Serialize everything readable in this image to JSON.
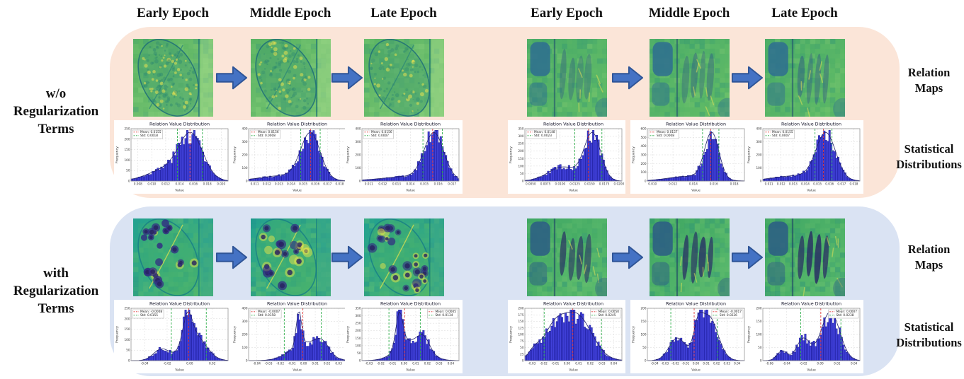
{
  "figure": {
    "background": "#ffffff"
  },
  "colors": {
    "panel_without": "#fbe5d8",
    "panel_with": "#dae3f3",
    "arrow_fill": "#4472c4",
    "arrow_stroke": "#2f5597",
    "hist_bar": "#3636d6",
    "hist_bar_edge": "#16168e",
    "mean_line": "#e23b3b",
    "std_line": "#2fae4a"
  },
  "column_headers": [
    "Early Epoch",
    "Middle Epoch",
    "Late Epoch"
  ],
  "row_groups": [
    {
      "label": "w/o\nRegularization\nTerms"
    },
    {
      "label": "with\nRegularization\nTerms"
    }
  ],
  "right_labels": {
    "relation_maps": "Relation\nMaps",
    "statistical_distributions": "Statistical\nDistributions"
  },
  "relation_maps": [
    {
      "panel": "w/o Regularization Terms",
      "sample": 1,
      "epoch": "Early Epoch",
      "style": "leaf-light",
      "appearance": "green leaf-section map, fine bright speckles, vertical seam near right edge"
    },
    {
      "panel": "w/o Regularization Terms",
      "sample": 1,
      "epoch": "Middle Epoch",
      "style": "leaf-light",
      "appearance": "green leaf-section map, slightly smoother speckle texture"
    },
    {
      "panel": "w/o Regularization Terms",
      "sample": 1,
      "epoch": "Late Epoch",
      "style": "leaf-light",
      "appearance": "green leaf-section map, smooth low-contrast texture"
    },
    {
      "panel": "w/o Regularization Terms",
      "sample": 2,
      "epoch": "Early Epoch",
      "style": "bands-light",
      "appearance": "green tissue map with faint dark vertical pores and dark capsule at top-left"
    },
    {
      "panel": "w/o Regularization Terms",
      "sample": 2,
      "epoch": "Middle Epoch",
      "style": "bands-light",
      "appearance": "green tissue map, pores slightly more defined"
    },
    {
      "panel": "w/o Regularization Terms",
      "sample": 2,
      "epoch": "Late Epoch",
      "style": "bands-light",
      "appearance": "green tissue map, pores clearer with mottled texture"
    },
    {
      "panel": "with Regularization Terms",
      "sample": 1,
      "epoch": "Early Epoch",
      "style": "leaf-dark",
      "appearance": "teal-green leaf map with many dark navy round blobs and yellow veins"
    },
    {
      "panel": "with Regularization Terms",
      "sample": 1,
      "epoch": "Middle Epoch",
      "style": "leaf-dark",
      "appearance": "teal-green leaf map, dark blobs larger and higher contrast"
    },
    {
      "panel": "with Regularization Terms",
      "sample": 1,
      "epoch": "Late Epoch",
      "style": "leaf-dark",
      "appearance": "teal-green leaf map, dark blobs sharpest"
    },
    {
      "panel": "with Regularization Terms",
      "sample": 2,
      "epoch": "Early Epoch",
      "style": "bands-dark",
      "appearance": "green tissue map with deep navy elongated pore blobs and dark left capsule"
    },
    {
      "panel": "with Regularization Terms",
      "sample": 2,
      "epoch": "Middle Epoch",
      "style": "bands-dark",
      "appearance": "green tissue map, navy pores larger and darker"
    },
    {
      "panel": "with Regularization Terms",
      "sample": 2,
      "epoch": "Late Epoch",
      "style": "bands-dark",
      "appearance": "green tissue map, navy pores darkest and most defined"
    }
  ],
  "chart_data": [
    {
      "id": "without-1-early",
      "type": "histogram",
      "panel": "w/o Regularization Terms",
      "sample": 1,
      "epoch": "Early Epoch",
      "title": "Relation Value Distribution",
      "xlabel": "Value",
      "ylabel": "Frequency",
      "legend": [
        "Mean: 0.0155",
        "Std: 0.0018"
      ],
      "mean": 0.0155,
      "std": 0.0018,
      "legend_pos": "left",
      "x_range": [
        0.007,
        0.021
      ],
      "xticks": [
        "0.008",
        "0.010",
        "0.012",
        "0.014",
        "0.016",
        "0.018",
        "0.020"
      ],
      "yticks": [
        0,
        50,
        100,
        150,
        200,
        250
      ],
      "peaks": [
        {
          "c": 0.0157,
          "s": 0.0017,
          "w": 1
        },
        {
          "c": 0.0125,
          "s": 0.0028,
          "w": 0.3
        }
      ]
    },
    {
      "id": "without-1-middle",
      "type": "histogram",
      "panel": "w/o Regularization Terms",
      "sample": 1,
      "epoch": "Middle Epoch",
      "title": "Relation Value Distribution",
      "xlabel": "Value",
      "ylabel": "Frequency",
      "legend": [
        "Mean: 0.0156",
        "Std: 0.0008"
      ],
      "mean": 0.0156,
      "std": 0.0008,
      "legend_pos": "left",
      "x_range": [
        0.0105,
        0.0185
      ],
      "xticks": [
        "0.011",
        "0.012",
        "0.013",
        "0.014",
        "0.015",
        "0.016",
        "0.017",
        "0.018"
      ],
      "yticks": [
        0,
        100,
        200,
        300,
        400
      ],
      "peaks": [
        {
          "c": 0.0156,
          "s": 0.0008,
          "w": 1
        },
        {
          "c": 0.0135,
          "s": 0.002,
          "w": 0.12
        }
      ]
    },
    {
      "id": "without-1-late",
      "type": "histogram",
      "panel": "w/o Regularization Terms",
      "sample": 1,
      "epoch": "Late Epoch",
      "title": "Relation Value Distribution",
      "xlabel": "Value",
      "ylabel": "Frequency",
      "legend": [
        "Mean: 0.0156",
        "Std: 0.0007"
      ],
      "mean": 0.0156,
      "std": 0.0007,
      "legend_pos": "left",
      "x_range": [
        0.0105,
        0.0175
      ],
      "xticks": [
        "0.011",
        "0.012",
        "0.013",
        "0.014",
        "0.015",
        "0.016",
        "0.017"
      ],
      "yticks": [
        0,
        100,
        200,
        300,
        400
      ],
      "peaks": [
        {
          "c": 0.0157,
          "s": 0.0007,
          "w": 1
        },
        {
          "c": 0.014,
          "s": 0.002,
          "w": 0.1
        }
      ]
    },
    {
      "id": "without-2-early",
      "type": "histogram",
      "panel": "w/o Regularization Terms",
      "sample": 2,
      "epoch": "Early Epoch",
      "title": "Relation Value Distribution",
      "xlabel": "Value",
      "ylabel": "Frequency",
      "legend": [
        "Mean: 0.0148",
        "Std: 0.0023"
      ],
      "mean": 0.0148,
      "std": 0.0023,
      "legend_pos": "left",
      "x_range": [
        0.004,
        0.0205
      ],
      "xticks": [
        "0.0050",
        "0.0075",
        "0.0100",
        "0.0125",
        "0.0150",
        "0.0175",
        "0.0200"
      ],
      "yticks": [
        0,
        50,
        100,
        150,
        200,
        250,
        300,
        350
      ],
      "peaks": [
        {
          "c": 0.0155,
          "s": 0.0014,
          "w": 1
        },
        {
          "c": 0.0105,
          "s": 0.0025,
          "w": 0.3
        }
      ]
    },
    {
      "id": "without-2-middle",
      "type": "histogram",
      "panel": "w/o Regularization Terms",
      "sample": 2,
      "epoch": "Middle Epoch",
      "title": "Relation Value Distribution",
      "xlabel": "Value",
      "ylabel": "Frequency",
      "legend": [
        "Mean: 0.0157",
        "Std: 0.0008"
      ],
      "mean": 0.0157,
      "std": 0.0008,
      "legend_pos": "left",
      "x_range": [
        0.0095,
        0.019
      ],
      "xticks": [
        "0.010",
        "0.012",
        "0.014",
        "0.016",
        "0.018"
      ],
      "yticks": [
        0,
        100,
        200,
        300,
        400,
        500,
        600
      ],
      "peaks": [
        {
          "c": 0.0158,
          "s": 0.0007,
          "w": 1
        },
        {
          "c": 0.0135,
          "s": 0.002,
          "w": 0.1
        }
      ]
    },
    {
      "id": "without-2-late",
      "type": "histogram",
      "panel": "w/o Regularization Terms",
      "sample": 2,
      "epoch": "Late Epoch",
      "title": "Relation Value Distribution",
      "xlabel": "Value",
      "ylabel": "Frequency",
      "legend": [
        "Mean: 0.0155",
        "Std: 0.0007"
      ],
      "mean": 0.0155,
      "std": 0.0007,
      "legend_pos": "left",
      "x_range": [
        0.0105,
        0.0185
      ],
      "xticks": [
        "0.011",
        "0.012",
        "0.013",
        "0.014",
        "0.015",
        "0.016",
        "0.017",
        "0.018"
      ],
      "yticks": [
        0,
        100,
        200,
        300,
        400
      ],
      "peaks": [
        {
          "c": 0.0157,
          "s": 0.0008,
          "w": 1
        },
        {
          "c": 0.0135,
          "s": 0.002,
          "w": 0.12
        }
      ]
    },
    {
      "id": "with-1-early",
      "type": "histogram",
      "panel": "with Regularization Terms",
      "sample": 1,
      "epoch": "Early Epoch",
      "title": "Relation Value Distribution",
      "xlabel": "Value",
      "ylabel": "Frequency",
      "legend": [
        "Mean: -0.0008",
        "Std: 0.0155"
      ],
      "mean": -0.0008,
      "std": 0.0155,
      "legend_pos": "left",
      "x_range": [
        -0.052,
        0.034
      ],
      "xticks": [
        "-0.04",
        "-0.02",
        "0.00",
        "0.02"
      ],
      "yticks": [
        0,
        50,
        100,
        150,
        200,
        250
      ],
      "peaks": [
        {
          "c": -0.002,
          "s": 0.004,
          "w": 0.9
        },
        {
          "c": 0.004,
          "s": 0.01,
          "w": 0.85
        },
        {
          "c": -0.025,
          "s": 0.007,
          "w": 0.38
        }
      ]
    },
    {
      "id": "with-1-middle",
      "type": "histogram",
      "panel": "with Regularization Terms",
      "sample": 1,
      "epoch": "Middle Epoch",
      "title": "Relation Value Distribution",
      "xlabel": "Value",
      "ylabel": "Frequency",
      "legend": [
        "Mean: -0.0007",
        "Std: 0.0158"
      ],
      "mean": -0.0007,
      "std": 0.0158,
      "legend_pos": "left",
      "x_range": [
        -0.047,
        0.036
      ],
      "xticks": [
        "-0.04",
        "-0.03",
        "-0.02",
        "-0.01",
        "0.00",
        "0.01",
        "0.02",
        "0.03"
      ],
      "yticks": [
        0,
        100,
        200,
        300,
        400
      ],
      "peaks": [
        {
          "c": -0.004,
          "s": 0.0022,
          "w": 1
        },
        {
          "c": 0.002,
          "s": 0.013,
          "w": 0.5
        },
        {
          "c": 0.016,
          "s": 0.006,
          "w": 0.33
        }
      ]
    },
    {
      "id": "with-1-late",
      "type": "histogram",
      "panel": "with Regularization Terms",
      "sample": 1,
      "epoch": "Late Epoch",
      "title": "Relation Value Distribution",
      "xlabel": "Value",
      "ylabel": "Frequency",
      "legend": [
        "Mean: 0.0005",
        "Std: 0.0134"
      ],
      "mean": 0.0005,
      "std": 0.0134,
      "legend_pos": "right",
      "x_range": [
        -0.036,
        0.047
      ],
      "xticks": [
        "-0.03",
        "-0.02",
        "-0.01",
        "0.00",
        "0.01",
        "0.02",
        "0.03",
        "0.04"
      ],
      "yticks": [
        0,
        50,
        100,
        150,
        200,
        250,
        300,
        350
      ],
      "peaks": [
        {
          "c": -0.004,
          "s": 0.003,
          "w": 1
        },
        {
          "c": 0.006,
          "s": 0.012,
          "w": 0.55
        },
        {
          "c": 0.017,
          "s": 0.005,
          "w": 0.35
        }
      ]
    },
    {
      "id": "with-2-early",
      "type": "histogram",
      "panel": "with Regularization Terms",
      "sample": 2,
      "epoch": "Early Epoch",
      "title": "Relation Value Distribution",
      "xlabel": "Value",
      "ylabel": "Frequency",
      "legend": [
        "Mean: 0.0050",
        "Std: 0.0245"
      ],
      "mean": 0.005,
      "std": 0.0245,
      "legend_pos": "right",
      "x_range": [
        -0.036,
        0.047
      ],
      "xticks": [
        "-0.03",
        "-0.02",
        "-0.01",
        "0.00",
        "0.01",
        "0.02",
        "0.03",
        "0.04"
      ],
      "yticks": [
        0,
        25,
        50,
        75,
        100,
        125,
        150,
        175,
        200
      ],
      "peaks": [
        {
          "c": 0.008,
          "s": 0.013,
          "w": 1
        },
        {
          "c": -0.012,
          "s": 0.009,
          "w": 0.55
        },
        {
          "c": -0.028,
          "s": 0.005,
          "w": 0.2
        }
      ]
    },
    {
      "id": "with-2-middle",
      "type": "histogram",
      "panel": "with Regularization Terms",
      "sample": 2,
      "epoch": "Middle Epoch",
      "title": "Relation Value Distribution",
      "xlabel": "Value",
      "ylabel": "Frequency",
      "legend": [
        "Mean: -0.0017",
        "Std: 0.0226"
      ],
      "mean": -0.0017,
      "std": 0.0226,
      "legend_pos": "right",
      "x_range": [
        -0.047,
        0.047
      ],
      "xticks": [
        "-0.04",
        "-0.03",
        "-0.02",
        "-0.01",
        "0.00",
        "0.01",
        "0.02",
        "0.03",
        "0.04"
      ],
      "yticks": [
        0,
        50,
        100,
        150,
        200
      ],
      "peaks": [
        {
          "c": 0.012,
          "s": 0.009,
          "w": 1
        },
        {
          "c": -0.018,
          "s": 0.008,
          "w": 0.5
        },
        {
          "c": 0.002,
          "s": 0.004,
          "w": 0.45
        }
      ]
    },
    {
      "id": "with-2-late",
      "type": "histogram",
      "panel": "with Regularization Terms",
      "sample": 2,
      "epoch": "Late Epoch",
      "title": "Relation Value Distribution",
      "xlabel": "Value",
      "ylabel": "Frequency",
      "legend": [
        "Mean: 0.0007",
        "Std: 0.0238"
      ],
      "mean": 0.0007,
      "std": 0.0238,
      "legend_pos": "right",
      "x_range": [
        -0.068,
        0.047
      ],
      "xticks": [
        "-0.06",
        "-0.04",
        "-0.02",
        "0.00",
        "0.02",
        "0.04"
      ],
      "yticks": [
        0,
        50,
        100,
        150,
        200
      ],
      "peaks": [
        {
          "c": 0.012,
          "s": 0.011,
          "w": 1
        },
        {
          "c": -0.02,
          "s": 0.008,
          "w": 0.45
        },
        {
          "c": -0.045,
          "s": 0.006,
          "w": 0.2
        }
      ]
    }
  ]
}
